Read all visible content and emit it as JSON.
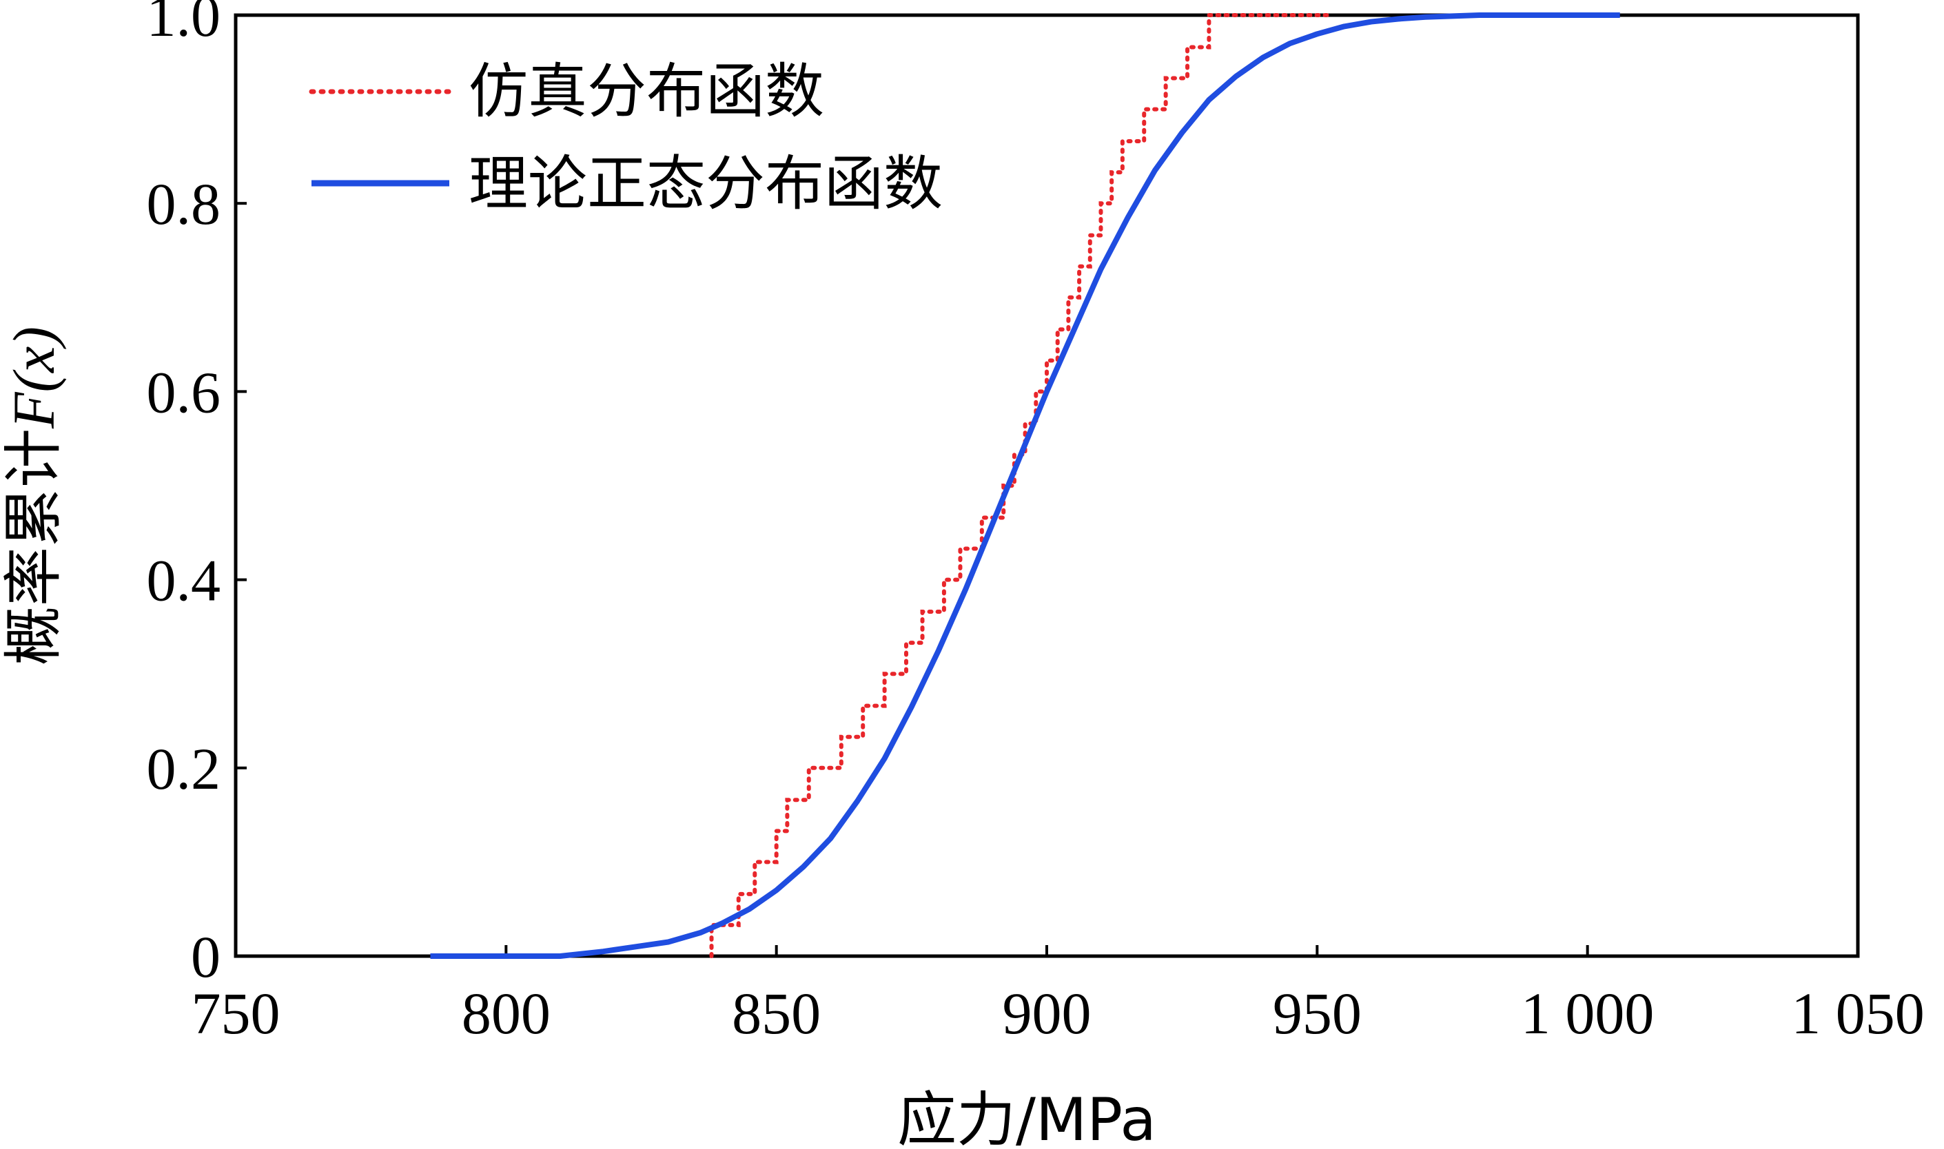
{
  "chart_data": {
    "type": "line",
    "xlabel": "应力/MPa",
    "ylabel_prefix": "概率累计",
    "ylabel_math": "F(x)",
    "xlim": [
      750,
      1050
    ],
    "ylim": [
      0,
      1.0
    ],
    "xticks": [
      750,
      800,
      850,
      900,
      950,
      1000,
      1050
    ],
    "xtick_labels": [
      "750",
      "800",
      "850",
      "900",
      "950",
      "1 000",
      "1 050"
    ],
    "yticks": [
      0,
      0.2,
      0.4,
      0.6,
      0.8,
      1.0
    ],
    "ytick_labels": [
      "0",
      "0.2",
      "0.4",
      "0.6",
      "0.8",
      "1.0"
    ],
    "legend_position": "top-left",
    "series": [
      {
        "name": "仿真分布函数",
        "style": "dotted-step",
        "color": "#e8262b",
        "x": [
          838,
          843,
          846,
          850,
          852,
          856,
          862,
          866,
          870,
          874,
          877,
          881,
          884,
          888,
          892,
          894,
          896,
          898,
          900,
          902,
          904,
          906,
          908,
          910,
          912,
          914,
          918,
          922,
          926,
          930,
          934,
          938,
          942,
          946,
          952
        ],
        "y": [
          0.033,
          0.066,
          0.1,
          0.133,
          0.166,
          0.2,
          0.233,
          0.266,
          0.3,
          0.333,
          0.366,
          0.4,
          0.433,
          0.466,
          0.5,
          0.533,
          0.566,
          0.6,
          0.633,
          0.666,
          0.7,
          0.733,
          0.766,
          0.8,
          0.833,
          0.866,
          0.9,
          0.933,
          0.966,
          1.0,
          1.0,
          1.0,
          1.0,
          1.0,
          1.0
        ]
      },
      {
        "name": "理论正态分布函数",
        "style": "solid",
        "color": "#1f4de0",
        "x": [
          786,
          800,
          810,
          818,
          824,
          830,
          836,
          840,
          845,
          850,
          855,
          860,
          865,
          870,
          875,
          880,
          885,
          890,
          895,
          900,
          905,
          910,
          915,
          920,
          925,
          930,
          935,
          940,
          945,
          950,
          955,
          960,
          965,
          970,
          975,
          980,
          990,
          1000,
          1006
        ],
        "y": [
          0.0,
          0.0,
          0.0,
          0.005,
          0.01,
          0.015,
          0.025,
          0.035,
          0.05,
          0.07,
          0.095,
          0.125,
          0.165,
          0.21,
          0.265,
          0.325,
          0.39,
          0.46,
          0.53,
          0.6,
          0.665,
          0.73,
          0.785,
          0.835,
          0.875,
          0.91,
          0.935,
          0.955,
          0.97,
          0.98,
          0.988,
          0.993,
          0.996,
          0.998,
          0.999,
          1.0,
          1.0,
          1.0,
          1.0
        ]
      }
    ]
  }
}
